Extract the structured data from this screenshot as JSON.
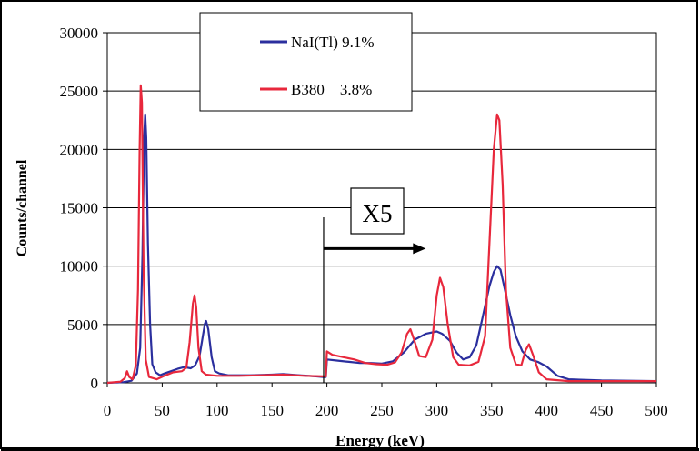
{
  "chart_data": {
    "type": "line",
    "xlabel": "Energy (keV)",
    "ylabel": "Counts/channel",
    "xlim": [
      0,
      500
    ],
    "ylim": [
      0,
      30000
    ],
    "x_ticks": [
      0,
      50,
      100,
      150,
      200,
      250,
      300,
      350,
      400,
      450,
      500
    ],
    "y_ticks": [
      0,
      5000,
      10000,
      15000,
      20000,
      25000,
      30000
    ],
    "grid": "horizontal",
    "legend_position": "top-left",
    "annotation": {
      "text": "X5",
      "marker_x": 197,
      "arrow_to_x": 290,
      "arrow_y": 11500
    },
    "series": [
      {
        "name": "NaI(Tl) 9.1%",
        "color": "#2b2f9e",
        "points": [
          [
            0,
            0
          ],
          [
            15,
            60
          ],
          [
            22,
            180
          ],
          [
            27,
            800
          ],
          [
            30,
            3000
          ],
          [
            32,
            11000
          ],
          [
            33.5,
            21000
          ],
          [
            34.5,
            23000
          ],
          [
            35.5,
            21000
          ],
          [
            37,
            12000
          ],
          [
            39,
            5000
          ],
          [
            41,
            1600
          ],
          [
            44,
            900
          ],
          [
            48,
            650
          ],
          [
            52,
            800
          ],
          [
            58,
            1000
          ],
          [
            64,
            1200
          ],
          [
            70,
            1350
          ],
          [
            76,
            1250
          ],
          [
            80,
            1500
          ],
          [
            84,
            2300
          ],
          [
            87,
            4000
          ],
          [
            89,
            5100
          ],
          [
            90,
            5300
          ],
          [
            92,
            4600
          ],
          [
            95,
            2200
          ],
          [
            98,
            1000
          ],
          [
            102,
            800
          ],
          [
            110,
            650
          ],
          [
            130,
            650
          ],
          [
            150,
            700
          ],
          [
            160,
            750
          ],
          [
            175,
            650
          ],
          [
            190,
            550
          ],
          [
            197,
            500
          ],
          [
            199,
            500
          ],
          [
            200,
            2000
          ],
          [
            210,
            1900
          ],
          [
            220,
            1800
          ],
          [
            230,
            1700
          ],
          [
            240,
            1700
          ],
          [
            250,
            1650
          ],
          [
            260,
            1850
          ],
          [
            270,
            2600
          ],
          [
            280,
            3700
          ],
          [
            290,
            4200
          ],
          [
            300,
            4400
          ],
          [
            305,
            4200
          ],
          [
            312,
            3600
          ],
          [
            318,
            2600
          ],
          [
            324,
            2000
          ],
          [
            330,
            2200
          ],
          [
            336,
            3200
          ],
          [
            342,
            5700
          ],
          [
            348,
            8300
          ],
          [
            352,
            9500
          ],
          [
            355,
            10000
          ],
          [
            358,
            9700
          ],
          [
            362,
            8000
          ],
          [
            367,
            5800
          ],
          [
            372,
            4000
          ],
          [
            378,
            2700
          ],
          [
            385,
            2000
          ],
          [
            392,
            1800
          ],
          [
            400,
            1400
          ],
          [
            410,
            600
          ],
          [
            420,
            300
          ],
          [
            450,
            200
          ],
          [
            500,
            150
          ]
        ]
      },
      {
        "name": "B380    3.8%",
        "color": "#e8283c",
        "points": [
          [
            0,
            0
          ],
          [
            12,
            100
          ],
          [
            16,
            400
          ],
          [
            18,
            1000
          ],
          [
            20,
            500
          ],
          [
            23,
            300
          ],
          [
            26,
            1500
          ],
          [
            28,
            8000
          ],
          [
            29.5,
            20000
          ],
          [
            30.5,
            25500
          ],
          [
            31.5,
            24000
          ],
          [
            33,
            10000
          ],
          [
            35,
            2000
          ],
          [
            38,
            500
          ],
          [
            45,
            300
          ],
          [
            52,
            600
          ],
          [
            60,
            900
          ],
          [
            68,
            1000
          ],
          [
            72,
            1300
          ],
          [
            75,
            3500
          ],
          [
            78,
            6800
          ],
          [
            79.5,
            7500
          ],
          [
            81,
            6500
          ],
          [
            83,
            3000
          ],
          [
            86,
            1000
          ],
          [
            90,
            700
          ],
          [
            100,
            600
          ],
          [
            120,
            600
          ],
          [
            140,
            650
          ],
          [
            160,
            700
          ],
          [
            180,
            600
          ],
          [
            197,
            550
          ],
          [
            199,
            550
          ],
          [
            200,
            2700
          ],
          [
            205,
            2400
          ],
          [
            215,
            2200
          ],
          [
            225,
            2000
          ],
          [
            235,
            1700
          ],
          [
            245,
            1600
          ],
          [
            255,
            1550
          ],
          [
            262,
            1750
          ],
          [
            268,
            2600
          ],
          [
            273,
            4200
          ],
          [
            276,
            4600
          ],
          [
            279,
            3800
          ],
          [
            284,
            2300
          ],
          [
            290,
            2200
          ],
          [
            296,
            3700
          ],
          [
            300,
            7500
          ],
          [
            303,
            9000
          ],
          [
            306,
            8200
          ],
          [
            310,
            5000
          ],
          [
            315,
            2200
          ],
          [
            320,
            1550
          ],
          [
            330,
            1500
          ],
          [
            338,
            1800
          ],
          [
            344,
            4000
          ],
          [
            348,
            12000
          ],
          [
            352,
            20000
          ],
          [
            355,
            23000
          ],
          [
            357,
            22500
          ],
          [
            360,
            17000
          ],
          [
            363,
            8000
          ],
          [
            367,
            3000
          ],
          [
            372,
            1600
          ],
          [
            377,
            1500
          ],
          [
            381,
            2800
          ],
          [
            384,
            3300
          ],
          [
            388,
            2300
          ],
          [
            393,
            900
          ],
          [
            400,
            300
          ],
          [
            420,
            150
          ],
          [
            450,
            150
          ],
          [
            500,
            150
          ]
        ]
      }
    ]
  }
}
